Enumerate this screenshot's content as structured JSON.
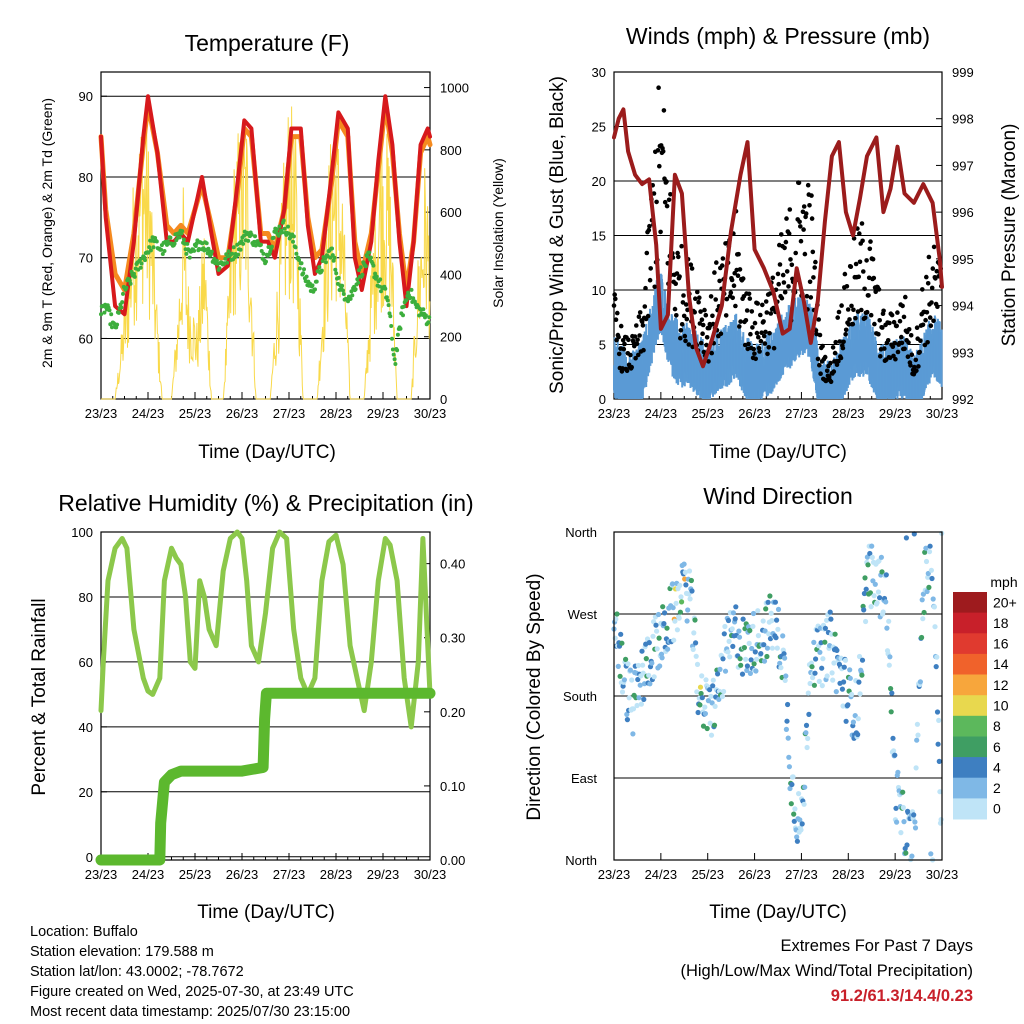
{
  "x_ticks": [
    "23/23",
    "24/23",
    "25/23",
    "26/23",
    "27/23",
    "28/23",
    "29/23",
    "30/23"
  ],
  "colors": {
    "temp_2m": "#d7191c",
    "temp_9m": "#f58a1f",
    "dewpoint": "#3cae3c",
    "insolation": "#f9d94a",
    "wind_sonic": "#5b9bd5",
    "gust": "#000000",
    "pressure": "#9b1c1c",
    "rh": "#8cc84b",
    "precip": "#5cb82e"
  },
  "chart_data": [
    {
      "type": "line",
      "title": "Temperature (F)",
      "xlabel": "Time (Day/UTC)",
      "ylabel": "2m & 9m T (Red, Orange) & 2m Td (Green)",
      "y2label": "Solar Insolation (Yellow)",
      "xlim": [
        0,
        7
      ],
      "ylim": [
        52.5,
        93
      ],
      "y_ticks": [
        60,
        70,
        80,
        90
      ],
      "y2lim": [
        0,
        1050
      ],
      "y2_ticks": [
        0,
        200,
        400,
        600,
        800,
        1000
      ],
      "grid": true,
      "series": [
        {
          "key": "temp_2m",
          "x": [
            0,
            0.1,
            0.3,
            0.5,
            0.7,
            0.9,
            1.0,
            1.2,
            1.4,
            1.55,
            1.7,
            1.85,
            2.0,
            2.15,
            2.35,
            2.5,
            2.7,
            2.9,
            3.05,
            3.2,
            3.4,
            3.55,
            3.7,
            3.9,
            4.05,
            4.25,
            4.4,
            4.55,
            4.7,
            4.9,
            5.05,
            5.25,
            5.4,
            5.55,
            5.75,
            5.9,
            6.05,
            6.2,
            6.35,
            6.5,
            6.65,
            6.8,
            6.95,
            7.0
          ],
          "y": [
            85,
            75,
            64,
            63,
            72,
            85,
            90,
            83,
            72,
            72,
            73,
            72,
            76,
            80,
            73,
            68,
            69,
            79,
            87,
            86,
            72,
            72,
            70,
            76,
            86,
            86,
            74,
            68,
            70,
            80,
            88,
            86,
            70,
            66,
            72,
            82,
            90,
            84,
            72,
            64,
            72,
            84,
            86,
            85
          ]
        },
        {
          "key": "temp_9m",
          "x": [
            0,
            0.1,
            0.3,
            0.5,
            0.7,
            0.9,
            1.0,
            1.2,
            1.4,
            1.55,
            1.7,
            1.85,
            2.0,
            2.15,
            2.35,
            2.5,
            2.7,
            2.9,
            3.05,
            3.2,
            3.4,
            3.55,
            3.7,
            3.9,
            4.05,
            4.25,
            4.4,
            4.55,
            4.7,
            4.9,
            5.05,
            5.25,
            5.4,
            5.55,
            5.75,
            5.9,
            6.05,
            6.2,
            6.35,
            6.5,
            6.65,
            6.8,
            6.95,
            7.0
          ],
          "y": [
            85,
            76,
            68,
            66,
            73,
            84,
            89,
            83,
            74,
            73,
            74,
            73,
            76,
            79,
            74,
            70,
            70,
            78,
            86,
            85,
            73,
            73,
            71,
            76,
            85,
            85,
            75,
            70,
            71,
            79,
            87,
            85,
            72,
            68,
            73,
            81,
            89,
            83,
            73,
            66,
            72,
            83,
            85,
            84
          ]
        },
        {
          "key": "dewpoint",
          "x": [
            0,
            0.1,
            0.3,
            0.5,
            0.7,
            0.9,
            1.1,
            1.3,
            1.5,
            1.7,
            1.9,
            2.1,
            2.3,
            2.5,
            2.7,
            2.9,
            3.1,
            3.3,
            3.5,
            3.7,
            3.9,
            4.1,
            4.3,
            4.5,
            4.7,
            4.9,
            5.1,
            5.3,
            5.5,
            5.7,
            5.9,
            6.1,
            6.25,
            6.4,
            6.55,
            6.7,
            6.85,
            7.0
          ],
          "y": [
            63,
            64,
            61,
            66,
            68,
            70,
            72,
            71,
            72,
            73,
            70,
            72,
            71,
            69,
            70,
            71,
            73,
            72,
            70,
            73,
            74,
            72,
            68,
            66,
            69,
            71,
            66,
            65,
            68,
            70,
            67,
            65,
            57,
            63,
            66,
            64,
            63,
            62
          ]
        }
      ],
      "insolation": {
        "x": [
          0.1,
          0.3,
          0.55,
          0.65,
          0.8,
          0.9,
          1.05,
          1.15,
          1.3,
          1.5,
          1.65,
          1.75,
          1.85,
          2.05,
          2.2,
          2.35,
          2.6,
          2.75,
          2.85,
          2.95,
          3.1,
          3.3,
          3.6,
          3.75,
          3.9,
          4.0,
          4.15,
          4.3,
          4.6,
          4.75,
          4.85,
          5.0,
          5.15,
          5.3,
          5.6,
          5.75,
          5.9,
          6.0,
          6.15,
          6.3,
          6.6,
          6.75,
          6.9,
          7.0
        ],
        "y": [
          0,
          0,
          400,
          650,
          900,
          980,
          800,
          450,
          0,
          0,
          350,
          700,
          400,
          250,
          600,
          0,
          0,
          500,
          850,
          900,
          950,
          0,
          0,
          400,
          800,
          1000,
          850,
          0,
          0,
          500,
          800,
          980,
          700,
          0,
          0,
          450,
          850,
          950,
          800,
          0,
          0,
          500,
          800,
          600
        ]
      }
    },
    {
      "type": "scatter",
      "title": "Winds (mph) & Pressure (mb)",
      "xlabel": "Time (Day/UTC)",
      "ylabel": "Sonic/Prop Wind & Gust (Blue, Black)",
      "y2label": "Station Pressure (Maroon)",
      "xlim": [
        0,
        7
      ],
      "ylim": [
        0,
        30
      ],
      "y_ticks": [
        0,
        5,
        10,
        15,
        20,
        25,
        30
      ],
      "y2lim": [
        992,
        999
      ],
      "y2_ticks": [
        992,
        993,
        994,
        995,
        996,
        997,
        998,
        999
      ],
      "grid": true,
      "pressure": {
        "x": [
          0,
          0.1,
          0.2,
          0.3,
          0.45,
          0.6,
          0.75,
          0.9,
          1.0,
          1.15,
          1.3,
          1.45,
          1.6,
          1.75,
          1.9,
          2.1,
          2.3,
          2.5,
          2.7,
          2.85,
          3.0,
          3.2,
          3.4,
          3.6,
          3.75,
          3.9,
          4.05,
          4.2,
          4.35,
          4.5,
          4.65,
          4.8,
          4.95,
          5.1,
          5.25,
          5.4,
          5.6,
          5.75,
          5.9,
          6.05,
          6.2,
          6.4,
          6.6,
          6.8,
          6.95,
          7.0
        ],
        "y": [
          997.6,
          998.0,
          998.2,
          997.3,
          996.8,
          996.6,
          996.7,
          995.3,
          993.5,
          993.8,
          996.8,
          996.4,
          994.2,
          993.1,
          992.7,
          993.3,
          994.0,
          995.6,
          996.8,
          997.5,
          995.2,
          994.8,
          994.3,
          993.4,
          993.5,
          994.8,
          994.1,
          993.2,
          994.1,
          995.8,
          997.2,
          997.5,
          996.0,
          995.5,
          996.3,
          997.2,
          997.6,
          996.0,
          996.5,
          997.4,
          996.4,
          996.2,
          996.6,
          996.2,
          995.0,
          994.4
        ]
      },
      "gust_mean": {
        "x": [
          0,
          0.2,
          0.4,
          0.6,
          0.8,
          0.9,
          1.0,
          1.1,
          1.25,
          1.4,
          1.6,
          1.8,
          2.0,
          2.2,
          2.4,
          2.6,
          2.8,
          3.0,
          3.2,
          3.4,
          3.6,
          3.8,
          4.0,
          4.2,
          4.4,
          4.6,
          4.8,
          5.0,
          5.2,
          5.4,
          5.6,
          5.8,
          6.0,
          6.2,
          6.4,
          6.6,
          6.8,
          7.0
        ],
        "y": [
          7,
          4,
          4,
          6,
          14,
          19,
          21,
          18,
          12,
          10,
          9,
          8,
          6,
          9,
          10,
          12,
          8,
          6,
          7,
          8,
          11,
          13,
          15,
          14,
          4,
          2,
          6,
          9,
          11,
          12,
          8,
          5,
          6,
          7,
          3,
          8,
          10,
          9
        ]
      },
      "wind_mean": {
        "x": [
          0,
          0.2,
          0.4,
          0.6,
          0.8,
          0.9,
          1.0,
          1.1,
          1.25,
          1.4,
          1.6,
          1.8,
          2.0,
          2.2,
          2.4,
          2.6,
          2.8,
          3.0,
          3.2,
          3.4,
          3.6,
          3.8,
          4.0,
          4.2,
          4.4,
          4.6,
          4.8,
          5.0,
          5.2,
          5.4,
          5.6,
          5.8,
          6.0,
          6.2,
          6.4,
          6.6,
          6.8,
          7.0
        ],
        "y": [
          3,
          2,
          1.5,
          2.5,
          6,
          8,
          9,
          7,
          5,
          4,
          4,
          3,
          2,
          3.5,
          4,
          5,
          3,
          2,
          3,
          3.5,
          5,
          6,
          7,
          6,
          1.5,
          0.5,
          2,
          4,
          5,
          5,
          3,
          2,
          2.5,
          3,
          1,
          3,
          5,
          4
        ]
      }
    },
    {
      "type": "line",
      "title": "Relative Humidity (%) & Precipitation (in)",
      "xlabel": "Time (Day/UTC)",
      "ylabel": "Percent & Total Rainfall",
      "xlim": [
        0,
        7
      ],
      "ylim": [
        -1,
        100
      ],
      "y_ticks": [
        0,
        20,
        40,
        60,
        80,
        100
      ],
      "y2lim": [
        0,
        0.44
      ],
      "y2_ticks": [
        "0.00",
        "0.10",
        "0.20",
        "0.30",
        "0.40"
      ],
      "grid": true,
      "series": [
        {
          "key": "rh",
          "x": [
            0,
            0.05,
            0.15,
            0.3,
            0.45,
            0.55,
            0.7,
            0.9,
            1.0,
            1.1,
            1.25,
            1.35,
            1.5,
            1.6,
            1.7,
            1.8,
            1.9,
            2.0,
            2.1,
            2.2,
            2.3,
            2.45,
            2.6,
            2.75,
            2.9,
            3.0,
            3.1,
            3.2,
            3.35,
            3.5,
            3.65,
            3.8,
            3.95,
            4.1,
            4.25,
            4.4,
            4.55,
            4.7,
            4.85,
            5.0,
            5.15,
            5.3,
            5.45,
            5.6,
            5.75,
            5.9,
            6.05,
            6.15,
            6.3,
            6.45,
            6.6,
            6.75,
            6.85,
            7.0
          ],
          "y": [
            45,
            60,
            85,
            95,
            98,
            95,
            70,
            55,
            51,
            50,
            55,
            85,
            95,
            92,
            90,
            80,
            60,
            58,
            85,
            80,
            70,
            65,
            88,
            98,
            100,
            98,
            85,
            65,
            60,
            75,
            95,
            100,
            98,
            70,
            55,
            50,
            55,
            85,
            97,
            99,
            90,
            65,
            55,
            45,
            60,
            85,
            98,
            96,
            85,
            55,
            40,
            60,
            98,
            50
          ]
        },
        {
          "key": "precip",
          "x": [
            0,
            1.25,
            1.27,
            1.35,
            1.5,
            1.7,
            2.0,
            2.5,
            3.0,
            3.45,
            3.48,
            3.52,
            7.0
          ],
          "y": [
            0,
            0,
            0.05,
            0.105,
            0.115,
            0.12,
            0.12,
            0.12,
            0.12,
            0.125,
            0.19,
            0.225,
            0.225
          ]
        }
      ]
    },
    {
      "type": "scatter",
      "title": "Wind Direction",
      "xlabel": "Time (Day/UTC)",
      "ylabel": "Direction (Colored By Speed)",
      "xlim": [
        0,
        7
      ],
      "ylim": [
        0,
        360
      ],
      "y_ticks": [
        "North",
        "East",
        "South",
        "West",
        "North"
      ],
      "colorbar_title": "mph",
      "colorbar_labels": [
        "20+",
        "18",
        "16",
        "14",
        "12",
        "10",
        "8",
        "6",
        "4",
        "2",
        "0"
      ],
      "colorbar_colors": [
        "#9e1b1e",
        "#c8202a",
        "#e03a2f",
        "#f0622b",
        "#f7a63c",
        "#e8d84e",
        "#5cb85c",
        "#3f9e63",
        "#3e7fc1",
        "#7fb8e6",
        "#bfe4f7"
      ],
      "dir_mean": {
        "x": [
          0,
          0.2,
          0.4,
          0.6,
          0.8,
          1.0,
          1.2,
          1.4,
          1.6,
          1.8,
          2.0,
          2.2,
          2.4,
          2.6,
          2.8,
          3.0,
          3.2,
          3.4,
          3.6,
          3.8,
          4.0,
          4.2,
          4.4,
          4.6,
          4.8,
          5.0,
          5.2,
          5.4,
          5.6,
          5.8,
          6.0,
          6.2,
          6.4,
          6.6,
          6.8,
          7.0
        ],
        "y": [
          270,
          200,
          170,
          200,
          230,
          240,
          265,
          285,
          300,
          190,
          160,
          180,
          230,
          250,
          230,
          240,
          250,
          260,
          230,
          80,
          30,
          230,
          220,
          240,
          210,
          180,
          160,
          320,
          300,
          300,
          80,
          30,
          20,
          300,
          340,
          10
        ]
      }
    }
  ],
  "info": {
    "location": "Location: Buffalo",
    "elevation": "Station elevation: 179.588 m",
    "latlon": "Station lat/lon: 43.0002; -78.7672",
    "created": "Figure created on Wed, 2025-07-30, at 23:49 UTC",
    "recent": "Most recent data timestamp: 2025/07/30 23:15:00"
  },
  "extremes": {
    "title": "Extremes For Past 7 Days",
    "subtitle": "(High/Low/Max Wind/Total Precipitation)",
    "values": "91.2/61.3/14.4/0.23"
  }
}
